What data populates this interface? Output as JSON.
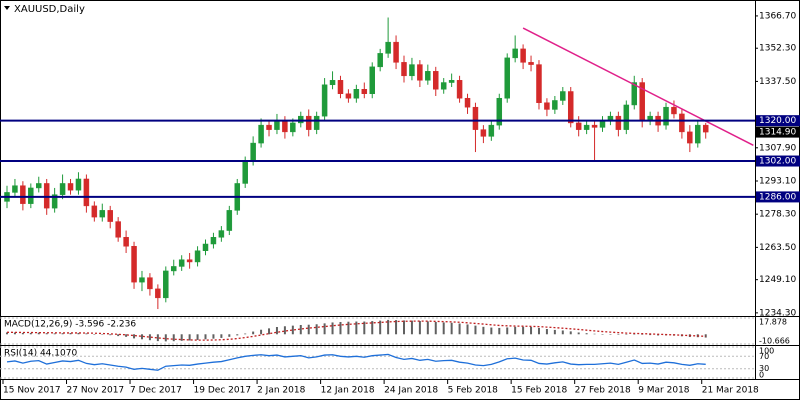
{
  "chart_data": {
    "type": "candlestick",
    "title": "XAUUSD,Daily",
    "categories": [
      "15 Nov 2017",
      null,
      null,
      null,
      null,
      null,
      null,
      null,
      "27 Nov 2017",
      null,
      null,
      null,
      null,
      null,
      null,
      null,
      "7 Dec 2017",
      null,
      null,
      null,
      null,
      null,
      null,
      null,
      "19 Dec 2017",
      null,
      null,
      null,
      null,
      null,
      null,
      null,
      "2 Jan 2018",
      null,
      null,
      null,
      null,
      null,
      null,
      null,
      "12 Jan 2018",
      null,
      null,
      null,
      null,
      null,
      null,
      null,
      "24 Jan 2018",
      null,
      null,
      null,
      null,
      null,
      null,
      null,
      "5 Feb 2018",
      null,
      null,
      null,
      null,
      null,
      null,
      null,
      "15 Feb 2018",
      null,
      null,
      null,
      null,
      null,
      null,
      null,
      "27 Feb 2018",
      null,
      null,
      null,
      null,
      null,
      null,
      null,
      "9 Mar 2018",
      null,
      null,
      null,
      null,
      null,
      null,
      null,
      "21 Mar 2018"
    ],
    "open": [
      1284,
      1288,
      1291,
      1283,
      1290,
      1292,
      1281,
      1287,
      1292,
      1289,
      1294,
      1282,
      1277,
      1280,
      1275,
      1268,
      1264,
      1248,
      1250,
      1245,
      1241,
      1253,
      1255,
      1258,
      1257,
      1262,
      1265,
      1268,
      1271,
      1280,
      1292,
      1302,
      1310,
      1318,
      1316,
      1320,
      1315,
      1319,
      1322,
      1316,
      1322,
      1336,
      1338,
      1332,
      1330,
      1334,
      1332,
      1344,
      1350,
      1355,
      1346,
      1340,
      1345,
      1338,
      1342,
      1334,
      1337,
      1338,
      1330,
      1326,
      1316,
      1313,
      1318,
      1330,
      1348,
      1352,
      1346,
      1345,
      1328,
      1325,
      1329,
      1333,
      1319,
      1316,
      1318,
      1317,
      1320,
      1322,
      1316,
      1327,
      1337,
      1320,
      1322,
      1318,
      1326,
      1323,
      1315,
      1310,
      1318
    ],
    "high": [
      1291,
      1294,
      1293,
      1292,
      1295,
      1294,
      1290,
      1296,
      1294,
      1297,
      1296,
      1284,
      1283,
      1282,
      1277,
      1271,
      1266,
      1253,
      1252,
      1247,
      1255,
      1258,
      1260,
      1261,
      1264,
      1267,
      1270,
      1273,
      1282,
      1294,
      1304,
      1313,
      1321,
      1320,
      1323,
      1322,
      1321,
      1324,
      1325,
      1324,
      1339,
      1342,
      1340,
      1334,
      1336,
      1337,
      1346,
      1352,
      1366,
      1358,
      1349,
      1348,
      1347,
      1345,
      1344,
      1339,
      1341,
      1340,
      1332,
      1328,
      1318,
      1320,
      1332,
      1350,
      1358,
      1354,
      1349,
      1347,
      1330,
      1331,
      1335,
      1335,
      1322,
      1320,
      1320,
      1322,
      1324,
      1324,
      1329,
      1340,
      1339,
      1324,
      1324,
      1328,
      1329,
      1325,
      1318,
      1320,
      1319
    ],
    "low": [
      1281,
      1286,
      1280,
      1281,
      1288,
      1278,
      1279,
      1285,
      1287,
      1287,
      1279,
      1275,
      1275,
      1272,
      1266,
      1261,
      1245,
      1244,
      1242,
      1236,
      1239,
      1251,
      1253,
      1254,
      1255,
      1260,
      1263,
      1266,
      1269,
      1278,
      1290,
      1300,
      1308,
      1313,
      1314,
      1312,
      1313,
      1317,
      1313,
      1314,
      1320,
      1334,
      1330,
      1328,
      1328,
      1330,
      1330,
      1342,
      1348,
      1343,
      1337,
      1338,
      1335,
      1336,
      1331,
      1332,
      1335,
      1328,
      1323,
      1306,
      1310,
      1311,
      1316,
      1328,
      1346,
      1343,
      1342,
      1325,
      1322,
      1323,
      1327,
      1317,
      1313,
      1314,
      1302,
      1315,
      1318,
      1313,
      1314,
      1325,
      1317,
      1318,
      1315,
      1316,
      1321,
      1312,
      1306,
      1308,
      1312
    ],
    "close": [
      1288,
      1291,
      1283,
      1290,
      1292,
      1281,
      1287,
      1292,
      1289,
      1294,
      1282,
      1277,
      1280,
      1275,
      1268,
      1264,
      1248,
      1250,
      1245,
      1241,
      1253,
      1255,
      1258,
      1257,
      1262,
      1265,
      1268,
      1271,
      1280,
      1292,
      1302,
      1310,
      1318,
      1316,
      1320,
      1315,
      1319,
      1322,
      1316,
      1322,
      1336,
      1338,
      1332,
      1330,
      1334,
      1332,
      1344,
      1350,
      1355,
      1346,
      1340,
      1345,
      1338,
      1342,
      1334,
      1337,
      1338,
      1330,
      1326,
      1316,
      1313,
      1318,
      1330,
      1348,
      1352,
      1346,
      1345,
      1328,
      1325,
      1329,
      1333,
      1319,
      1316,
      1318,
      1317,
      1320,
      1322,
      1316,
      1327,
      1337,
      1320,
      1322,
      1318,
      1326,
      1323,
      1315,
      1310,
      1318,
      1314.9
    ],
    "up_color": "#1f9a3a",
    "down_color": "#d42a2a",
    "ylim": [
      1232.9,
      1373.8
    ],
    "yticks": [
      {
        "value": 1366.7,
        "label": "1366.70"
      },
      {
        "value": 1352.3,
        "label": "1352.30"
      },
      {
        "value": 1337.5,
        "label": "1337.50"
      },
      {
        "value": 1307.9,
        "label": "1307.90"
      },
      {
        "value": 1293.1,
        "label": "1293.10"
      },
      {
        "value": 1278.3,
        "label": "1278.30"
      },
      {
        "value": 1263.5,
        "label": "1263.50"
      },
      {
        "value": 1249.1,
        "label": "1249.10"
      },
      {
        "value": 1234.3,
        "label": "1234.30"
      }
    ],
    "levels": [
      {
        "value": 1320,
        "label": "1320.00"
      },
      {
        "value": 1302,
        "label": "1302.00"
      },
      {
        "value": 1286,
        "label": "1286.00"
      }
    ],
    "level_color": "#000080",
    "current_price": {
      "value": 1314.9,
      "label": "1314.90"
    },
    "trendline": {
      "color": "#e0208a",
      "x": [
        65,
        94
      ],
      "y": [
        1361.3,
        1309.0
      ]
    },
    "indicators": [
      {
        "type": "macd",
        "title": "MACD(12,26,9) -3.596 -2.236",
        "ylim": [
          -10.666,
          17.878
        ],
        "yticks": [
          17.878,
          -10.666
        ],
        "histogram": {
          "color": "#606060",
          "values": [
            2,
            2,
            1.5,
            1.5,
            1.8,
            1.2,
            1,
            1.2,
            1.4,
            1.5,
            1,
            0.2,
            -0.5,
            -1,
            -2,
            -2.8,
            -4.5,
            -5.5,
            -6.5,
            -7.5,
            -7.8,
            -7.6,
            -7.2,
            -6.8,
            -6.2,
            -5.5,
            -4.8,
            -4,
            -2.8,
            -1.2,
            0.8,
            3,
            5,
            6.5,
            8,
            8.8,
            9.5,
            10.2,
            10.5,
            11,
            12,
            13,
            13.5,
            13.8,
            14,
            14,
            14.5,
            15,
            15.8,
            15.6,
            15.2,
            15,
            14.6,
            14.2,
            13.5,
            13,
            12.6,
            11.8,
            10.8,
            9.5,
            8.2,
            7.4,
            7,
            7.5,
            8.2,
            8.3,
            8,
            7,
            5.8,
            4.8,
            4.2,
            3.2,
            2,
            1.2,
            0.6,
            0.2,
            -0.1,
            -0.6,
            -0.5,
            0.2,
            -0.4,
            -0.9,
            -1.3,
            -1.2,
            -1.5,
            -2.2,
            -3,
            -3.2,
            -3.596
          ]
        },
        "signal": {
          "color": "#c02020",
          "values": [
            2.2,
            2.1,
            2,
            1.9,
            1.8,
            1.7,
            1.6,
            1.5,
            1.5,
            1.5,
            1.4,
            1.2,
            0.9,
            0.5,
            0,
            -0.6,
            -1.4,
            -2.2,
            -3.1,
            -4,
            -4.8,
            -5.4,
            -5.8,
            -6.2,
            -6.4,
            -6.4,
            -6.3,
            -6,
            -5.5,
            -4.7,
            -3.6,
            -2.3,
            -0.8,
            0.7,
            2.2,
            3.5,
            4.7,
            5.8,
            6.8,
            7.6,
            8.5,
            9.4,
            10.2,
            10.9,
            11.5,
            12,
            12.5,
            13,
            13.6,
            14,
            14.3,
            14.4,
            14.5,
            14.4,
            14.2,
            13.9,
            13.6,
            13.2,
            12.6,
            11.9,
            11.2,
            10.4,
            9.7,
            9.3,
            9,
            8.9,
            8.7,
            8.4,
            7.9,
            7.3,
            6.7,
            6,
            5.3,
            4.5,
            3.7,
            3,
            2.4,
            1.8,
            1.3,
            1,
            0.7,
            0.4,
            0,
            -0.3,
            -0.6,
            -1,
            -1.4,
            -1.8,
            -2.236
          ]
        }
      },
      {
        "type": "line",
        "title": "RSI(14) 44.1070",
        "ylim": [
          0,
          100
        ],
        "yticks": [
          100,
          70,
          30,
          0
        ],
        "color": "#1e6fd9",
        "values": [
          52,
          55,
          48,
          54,
          56,
          45,
          50,
          55,
          53,
          57,
          47,
          43,
          46,
          42,
          38,
          35,
          28,
          31,
          28,
          25,
          38,
          40,
          42,
          41,
          45,
          48,
          51,
          53,
          59,
          65,
          70,
          73,
          75,
          72,
          74,
          68,
          70,
          72,
          65,
          68,
          74,
          75,
          70,
          68,
          70,
          67,
          72,
          74,
          76,
          66,
          60,
          63,
          57,
          60,
          54,
          56,
          57,
          51,
          48,
          42,
          40,
          44,
          52,
          62,
          64,
          58,
          57,
          47,
          45,
          49,
          52,
          45,
          43,
          44,
          44,
          46,
          48,
          44,
          51,
          58,
          47,
          48,
          45,
          51,
          49,
          44,
          41,
          46,
          44.107
        ]
      }
    ]
  }
}
